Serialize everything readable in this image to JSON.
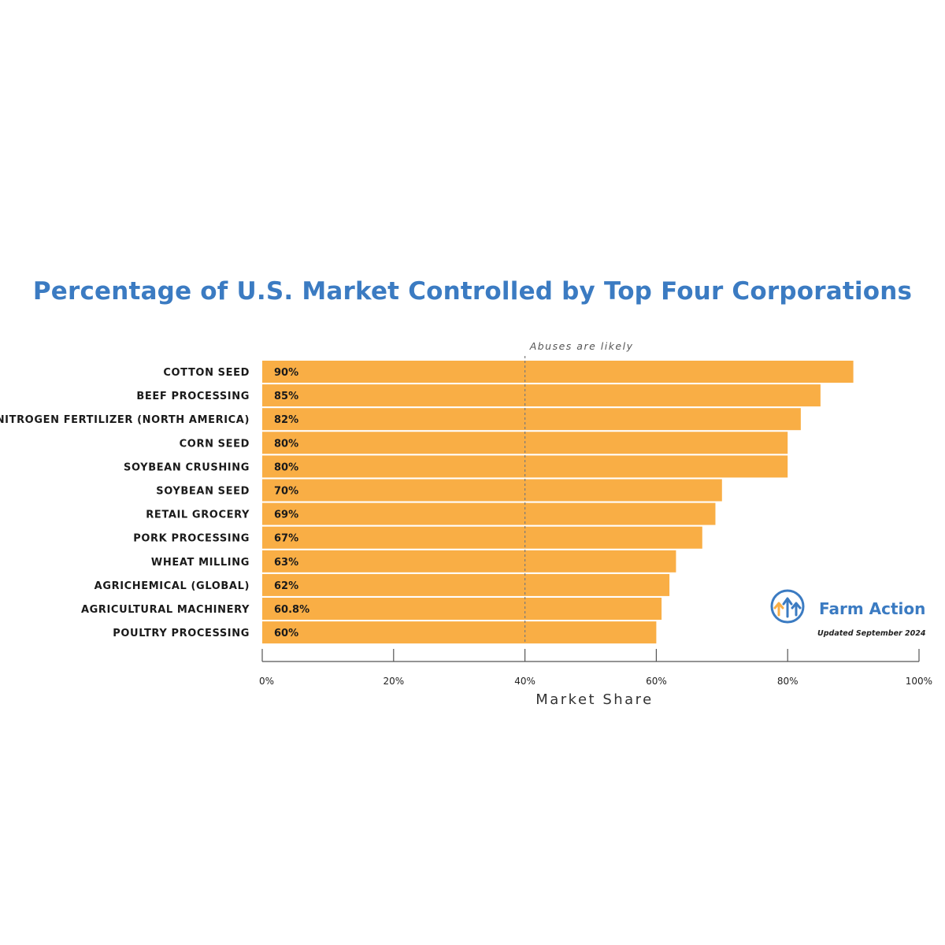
{
  "chart_data": {
    "type": "bar",
    "orientation": "horizontal",
    "title": "Percentage of U.S. Market Controlled by Top Four Corporations",
    "xlabel": "Market Share",
    "ylabel": "",
    "xlim": [
      0,
      100
    ],
    "categories": [
      "COTTON SEED",
      "BEEF PROCESSING",
      "NITROGEN FERTILIZER (NORTH AMERICA)",
      "CORN SEED",
      "SOYBEAN CRUSHING",
      "SOYBEAN SEED",
      "RETAIL GROCERY",
      "PORK PROCESSING",
      "WHEAT MILLING",
      "AGRICHEMICAL (GLOBAL)",
      "AGRICULTURAL MACHINERY",
      "POULTRY PROCESSING"
    ],
    "values": [
      90,
      85,
      82,
      80,
      80,
      70,
      69,
      67,
      63,
      62,
      60.8,
      60
    ],
    "value_labels": [
      "90%",
      "85%",
      "82%",
      "80%",
      "80%",
      "70%",
      "69%",
      "67%",
      "63%",
      "62%",
      "60.8%",
      "60%"
    ],
    "ticks": [
      0,
      20,
      40,
      60,
      80,
      100
    ],
    "tick_labels": [
      "0%",
      "20%",
      "40%",
      "60%",
      "80%",
      "100%"
    ],
    "reference_line": {
      "value": 40,
      "label": "Abuses are likely",
      "style": "dashed"
    },
    "grid": false,
    "bar_color": "#f9ae45",
    "title_color": "#3b7bc2"
  },
  "logo": {
    "name": "Farm Action",
    "updated": "Updated September 2024",
    "icon": "farm-action-arrows-icon",
    "color": "#3b7bc2",
    "accent": "#f9ae45"
  }
}
